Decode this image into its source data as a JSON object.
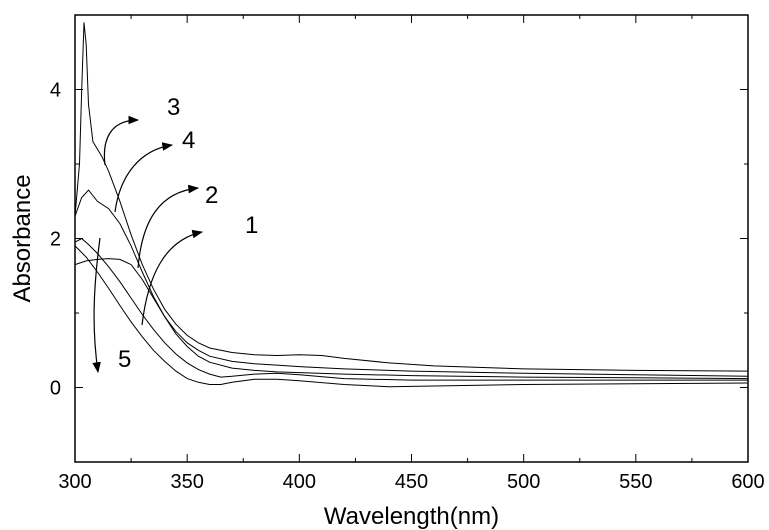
{
  "chart_data": {
    "type": "line",
    "title": "",
    "xlabel": "Wavelength(nm)",
    "ylabel": "Absorbance",
    "xlim": [
      300,
      600
    ],
    "ylim": [
      -1,
      5
    ],
    "x_ticks": [
      300,
      350,
      400,
      450,
      500,
      550,
      600
    ],
    "y_ticks": [
      0,
      2,
      4
    ],
    "grid": false,
    "series": [
      {
        "name": "1",
        "points": [
          [
            300,
            1.65
          ],
          [
            305,
            1.7
          ],
          [
            310,
            1.72
          ],
          [
            315,
            1.73
          ],
          [
            320,
            1.72
          ],
          [
            325,
            1.65
          ],
          [
            330,
            1.45
          ],
          [
            335,
            1.2
          ],
          [
            340,
            0.95
          ],
          [
            345,
            0.72
          ],
          [
            350,
            0.55
          ],
          [
            355,
            0.42
          ],
          [
            360,
            0.34
          ],
          [
            370,
            0.26
          ],
          [
            380,
            0.23
          ],
          [
            390,
            0.21
          ],
          [
            400,
            0.2
          ],
          [
            420,
            0.18
          ],
          [
            450,
            0.16
          ],
          [
            500,
            0.14
          ],
          [
            550,
            0.13
          ],
          [
            600,
            0.12
          ]
        ]
      },
      {
        "name": "2",
        "points": [
          [
            300,
            1.95
          ],
          [
            303,
            2.0
          ],
          [
            306,
            1.92
          ],
          [
            310,
            1.8
          ],
          [
            315,
            1.62
          ],
          [
            320,
            1.42
          ],
          [
            325,
            1.2
          ],
          [
            330,
            0.98
          ],
          [
            335,
            0.78
          ],
          [
            340,
            0.6
          ],
          [
            345,
            0.45
          ],
          [
            350,
            0.33
          ],
          [
            355,
            0.24
          ],
          [
            360,
            0.18
          ],
          [
            365,
            0.14
          ],
          [
            370,
            0.15
          ],
          [
            380,
            0.18
          ],
          [
            390,
            0.19
          ],
          [
            400,
            0.17
          ],
          [
            420,
            0.12
          ],
          [
            450,
            0.1
          ],
          [
            500,
            0.1
          ],
          [
            550,
            0.1
          ],
          [
            600,
            0.1
          ]
        ]
      },
      {
        "name": "3",
        "points": [
          [
            300,
            2.3
          ],
          [
            302,
            3.0
          ],
          [
            303,
            4.0
          ],
          [
            304,
            4.9
          ],
          [
            305,
            4.6
          ],
          [
            306,
            3.8
          ],
          [
            308,
            3.3
          ],
          [
            310,
            3.2
          ],
          [
            312,
            3.1
          ],
          [
            315,
            2.9
          ],
          [
            320,
            2.5
          ],
          [
            325,
            2.05
          ],
          [
            330,
            1.65
          ],
          [
            335,
            1.32
          ],
          [
            340,
            1.05
          ],
          [
            345,
            0.85
          ],
          [
            350,
            0.7
          ],
          [
            355,
            0.6
          ],
          [
            360,
            0.53
          ],
          [
            370,
            0.47
          ],
          [
            380,
            0.44
          ],
          [
            390,
            0.43
          ],
          [
            400,
            0.44
          ],
          [
            410,
            0.43
          ],
          [
            420,
            0.39
          ],
          [
            440,
            0.33
          ],
          [
            460,
            0.29
          ],
          [
            500,
            0.25
          ],
          [
            550,
            0.23
          ],
          [
            600,
            0.22
          ]
        ]
      },
      {
        "name": "4",
        "points": [
          [
            300,
            2.3
          ],
          [
            303,
            2.55
          ],
          [
            306,
            2.65
          ],
          [
            310,
            2.5
          ],
          [
            315,
            2.4
          ],
          [
            320,
            2.2
          ],
          [
            325,
            1.9
          ],
          [
            330,
            1.55
          ],
          [
            335,
            1.22
          ],
          [
            340,
            0.95
          ],
          [
            345,
            0.75
          ],
          [
            350,
            0.6
          ],
          [
            355,
            0.5
          ],
          [
            360,
            0.42
          ],
          [
            370,
            0.35
          ],
          [
            380,
            0.32
          ],
          [
            390,
            0.3
          ],
          [
            400,
            0.28
          ],
          [
            420,
            0.25
          ],
          [
            450,
            0.22
          ],
          [
            500,
            0.19
          ],
          [
            550,
            0.17
          ],
          [
            600,
            0.15
          ]
        ]
      },
      {
        "name": "5",
        "points": [
          [
            300,
            1.9
          ],
          [
            305,
            1.75
          ],
          [
            310,
            1.55
          ],
          [
            315,
            1.33
          ],
          [
            320,
            1.1
          ],
          [
            325,
            0.88
          ],
          [
            330,
            0.68
          ],
          [
            335,
            0.5
          ],
          [
            340,
            0.35
          ],
          [
            345,
            0.22
          ],
          [
            350,
            0.12
          ],
          [
            355,
            0.07
          ],
          [
            360,
            0.04
          ],
          [
            365,
            0.04
          ],
          [
            370,
            0.07
          ],
          [
            380,
            0.11
          ],
          [
            390,
            0.11
          ],
          [
            400,
            0.09
          ],
          [
            420,
            0.04
          ],
          [
            440,
            0.01
          ],
          [
            460,
            0.02
          ],
          [
            500,
            0.04
          ],
          [
            550,
            0.05
          ],
          [
            600,
            0.06
          ]
        ]
      }
    ]
  }
}
